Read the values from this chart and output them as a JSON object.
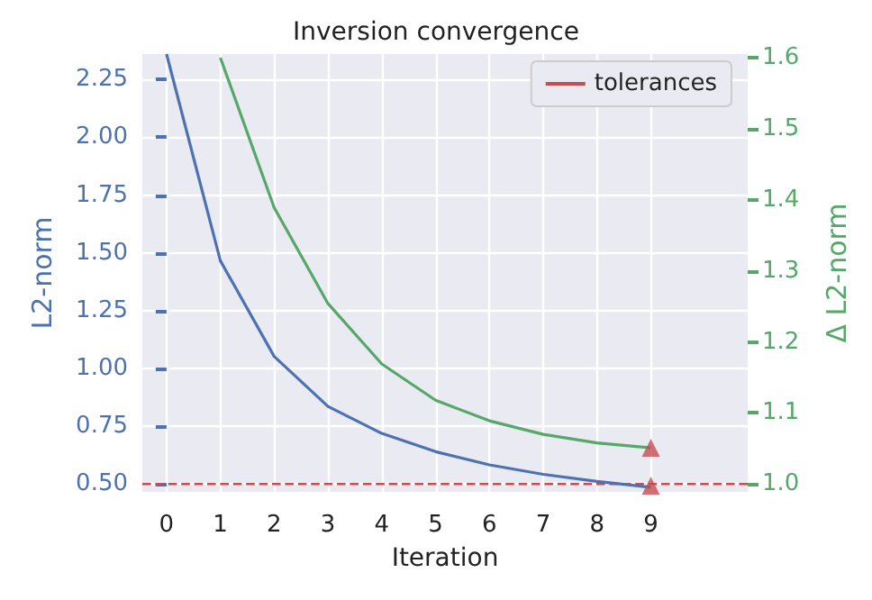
{
  "chart_data": {
    "type": "line",
    "title": "Inversion convergence",
    "xlabel": "Iteration",
    "ylabel": "L2-norm",
    "y2label": "Δ L2-norm",
    "x": [
      0,
      1,
      2,
      3,
      4,
      5,
      6,
      7,
      8,
      9
    ],
    "series": [
      {
        "color": "#4c72b0",
        "values": [
          2.36,
          1.466,
          1.052,
          0.836,
          0.719,
          0.64,
          0.583,
          0.542,
          0.511,
          0.486
        ]
      },
      {
        "color": "#55a868",
        "axis": "y2",
        "values": [
          null,
          1.6,
          1.389,
          1.254,
          1.169,
          1.118,
          1.089,
          1.07,
          1.058,
          1.051
        ]
      },
      {
        "type": "scatter",
        "color": "#c44e52",
        "marker": "triangle",
        "x": [
          9
        ],
        "values": [
          0.492
        ]
      },
      {
        "type": "scatter",
        "color": "#c44e52",
        "marker": "triangle",
        "axis": "y2",
        "x": [
          9
        ],
        "values": [
          1.051
        ]
      }
    ],
    "xlim": [
      -0.45,
      10.8
    ],
    "xticks": [
      0,
      1,
      2,
      3,
      4,
      5,
      6,
      7,
      8,
      9
    ],
    "ylim": [
      0.466,
      2.36
    ],
    "yticks": [
      {
        "value": 0.5,
        "label": "0.50"
      },
      {
        "value": 0.75,
        "label": "0.75"
      },
      {
        "value": 1,
        "label": "1.00"
      },
      {
        "value": 1.25,
        "label": "1.25"
      },
      {
        "value": 1.5,
        "label": "1.50"
      },
      {
        "value": 1.75,
        "label": "1.75"
      },
      {
        "value": 2,
        "label": "2.00"
      },
      {
        "value": 2.25,
        "label": "2.25"
      }
    ],
    "y2lim": [
      0.989,
      1.605
    ],
    "y2ticks": [
      {
        "value": 1,
        "label": "1.0"
      },
      {
        "value": 1.1,
        "label": "1.1"
      },
      {
        "value": 1.2,
        "label": "1.2"
      },
      {
        "value": 1.3,
        "label": "1.3"
      },
      {
        "value": 1.4,
        "label": "1.4"
      },
      {
        "value": 1.5,
        "label": "1.5"
      },
      {
        "value": 1.6,
        "label": "1.6"
      }
    ],
    "ref_lines": [
      {
        "axis": "y",
        "value": 0.5,
        "label": "tolerances",
        "color": "#c44e52",
        "line_style": "dashed"
      }
    ],
    "grid": true,
    "legend": "top right",
    "marker": "none",
    "line_style": "solid"
  }
}
